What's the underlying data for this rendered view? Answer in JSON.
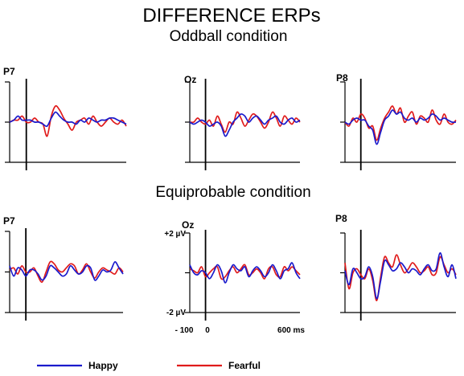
{
  "title": "DIFFERENCE ERPs",
  "sections": {
    "oddball": "Oddball condition",
    "equiprobable": "Equiprobable condition"
  },
  "axis_labels": {
    "y_top": "+2 µV",
    "y_bottom": "-2 µV",
    "x_start": "- 100",
    "x_zero": "0",
    "x_end": "600 ms"
  },
  "legend": [
    {
      "name": "Happy",
      "color": "#1a1acc"
    },
    {
      "name": "Fearful",
      "color": "#e01b1b"
    }
  ],
  "colors": {
    "happy": "#1a1acc",
    "fearful": "#e01b1b",
    "axis": "#000000"
  },
  "chart_data": [
    {
      "type": "line",
      "condition": "Oddball condition",
      "electrode": "P7",
      "xlim": [
        -100,
        600
      ],
      "ylim": [
        -2,
        2
      ],
      "x": [
        -100,
        -75,
        -50,
        -25,
        0,
        25,
        50,
        75,
        100,
        125,
        150,
        175,
        200,
        225,
        250,
        275,
        300,
        325,
        350,
        375,
        400,
        425,
        450,
        475,
        500,
        525,
        550,
        575,
        600
      ],
      "series": [
        {
          "name": "Happy",
          "values": [
            0,
            0.1,
            0.3,
            0.1,
            0.1,
            0.1,
            0,
            0,
            -0.1,
            -0.2,
            0.2,
            0.5,
            0.3,
            0.1,
            0,
            0,
            -0.1,
            0.1,
            0,
            0.2,
            0.1,
            0,
            0.1,
            0.1,
            0.2,
            0.2,
            0.1,
            0,
            -0.1
          ]
        },
        {
          "name": "Fearful",
          "values": [
            0,
            0.1,
            0.1,
            0.3,
            0,
            0,
            0.2,
            0,
            -0.1,
            -0.7,
            0.3,
            0.8,
            0.6,
            0.2,
            -0.1,
            -0.4,
            0,
            0.1,
            0.2,
            -0.1,
            0.3,
            0,
            -0.2,
            0,
            0.2,
            0,
            -0.1,
            0.1,
            -0.2
          ]
        }
      ]
    },
    {
      "type": "line",
      "condition": "Oddball condition",
      "electrode": "Oz",
      "xlim": [
        -100,
        600
      ],
      "ylim": [
        -2,
        2
      ],
      "x": [
        -100,
        -75,
        -50,
        -25,
        0,
        25,
        50,
        75,
        100,
        125,
        150,
        175,
        200,
        225,
        250,
        275,
        300,
        325,
        350,
        375,
        400,
        425,
        450,
        475,
        500,
        525,
        550,
        575,
        600
      ],
      "series": [
        {
          "name": "Happy",
          "values": [
            0,
            -0.1,
            0,
            0.1,
            0,
            -0.2,
            -0.1,
            0,
            -0.2,
            -0.7,
            -0.4,
            0,
            0.2,
            0.4,
            0.3,
            0,
            0.2,
            0.3,
            0.1,
            -0.1,
            0.1,
            0.2,
            0.3,
            0,
            -0.1,
            0.1,
            0.2,
            0,
            0.1
          ]
        },
        {
          "name": "Fearful",
          "values": [
            0,
            0,
            0.2,
            0,
            -0.1,
            0.1,
            -0.2,
            0.3,
            -0.1,
            -0.5,
            0,
            -0.1,
            0.5,
            0.2,
            -0.2,
            0.1,
            0.4,
            0.3,
            0,
            -0.3,
            0,
            0.5,
            0.2,
            -0.2,
            0.3,
            0.1,
            -0.1,
            0.2,
            0
          ]
        }
      ]
    },
    {
      "type": "line",
      "condition": "Oddball condition",
      "electrode": "P8",
      "xlim": [
        -100,
        600
      ],
      "ylim": [
        -2,
        2
      ],
      "x": [
        -100,
        -75,
        -50,
        -25,
        0,
        25,
        50,
        75,
        100,
        125,
        150,
        175,
        200,
        225,
        250,
        275,
        300,
        325,
        350,
        375,
        400,
        425,
        450,
        475,
        500,
        525,
        550,
        575,
        600
      ],
      "series": [
        {
          "name": "Happy",
          "values": [
            0,
            -0.1,
            0.1,
            0.2,
            0.1,
            0.1,
            -0.2,
            -0.4,
            -1.1,
            -0.5,
            0.1,
            0.3,
            0.6,
            0.4,
            0.5,
            0.2,
            0.1,
            0.2,
            0,
            0.2,
            0.1,
            0.2,
            0.4,
            0.3,
            0.1,
            0.2,
            0.1,
            0,
            0
          ]
        },
        {
          "name": "Fearful",
          "values": [
            0,
            -0.2,
            0.2,
            0,
            0.4,
            0.2,
            -0.3,
            -0.2,
            -0.9,
            -0.3,
            0.2,
            0.5,
            0.8,
            0.4,
            0.7,
            0,
            0.3,
            0.5,
            -0.1,
            0.3,
            0.2,
            0,
            0.6,
            0.1,
            -0.1,
            0.4,
            0,
            -0.1,
            0.1
          ]
        }
      ]
    },
    {
      "type": "line",
      "condition": "Equiprobable condition",
      "electrode": "P7",
      "xlim": [
        -100,
        600
      ],
      "ylim": [
        -2,
        2
      ],
      "x": [
        -100,
        -75,
        -50,
        -25,
        0,
        25,
        50,
        75,
        100,
        125,
        150,
        175,
        200,
        225,
        250,
        275,
        300,
        325,
        350,
        375,
        400,
        425,
        450,
        475,
        500,
        525,
        550,
        575,
        600
      ],
      "series": [
        {
          "name": "Happy",
          "values": [
            0.3,
            -0.2,
            0.2,
            0.1,
            -0.2,
            0.1,
            0.1,
            -0.1,
            -0.4,
            -0.2,
            0.3,
            0.2,
            0,
            -0.2,
            -0.1,
            0.3,
            0.1,
            -0.1,
            0,
            0.3,
            0.2,
            -0.4,
            -0.2,
            0.1,
            0,
            0.1,
            0.5,
            0.2,
            -0.1
          ]
        },
        {
          "name": "Fearful",
          "values": [
            0.1,
            0.2,
            -0.1,
            0.3,
            0,
            0,
            0.2,
            -0.2,
            -0.5,
            0,
            0.5,
            0.4,
            0.1,
            0,
            0.2,
            0.4,
            0.3,
            -0.1,
            0.1,
            0.4,
            0,
            -0.3,
            0,
            0.2,
            0.1,
            0,
            -0.1,
            0.2,
            0
          ]
        }
      ]
    },
    {
      "type": "line",
      "condition": "Equiprobable condition",
      "electrode": "Oz",
      "xlim": [
        -100,
        600
      ],
      "ylim": [
        -2,
        2
      ],
      "x": [
        -100,
        -75,
        -50,
        -25,
        0,
        25,
        50,
        75,
        100,
        125,
        150,
        175,
        200,
        225,
        250,
        275,
        300,
        325,
        350,
        375,
        400,
        425,
        450,
        475,
        500,
        525,
        550,
        575,
        600
      ],
      "series": [
        {
          "name": "Happy",
          "values": [
            0.4,
            0,
            -0.1,
            0.1,
            0,
            -0.3,
            0,
            0.4,
            0.1,
            -0.5,
            0,
            0.4,
            0.2,
            0.1,
            0.3,
            -0.2,
            0.1,
            0.3,
            0.1,
            -0.2,
            0,
            0.4,
            0.1,
            -0.3,
            0.1,
            0.2,
            0.5,
            0,
            -0.3
          ]
        },
        {
          "name": "Fearful",
          "values": [
            0.2,
            0.1,
            0,
            0.3,
            -0.2,
            0,
            0.2,
            0.3,
            -0.3,
            -0.2,
            0.1,
            0.3,
            0,
            0.2,
            0.4,
            -0.1,
            0,
            0.2,
            0,
            -0.3,
            0.2,
            0.3,
            -0.1,
            -0.2,
            0.3,
            0.1,
            0.3,
            0.1,
            -0.1
          ]
        }
      ]
    },
    {
      "type": "line",
      "condition": "Equiprobable condition",
      "electrode": "P8",
      "xlim": [
        -100,
        600
      ],
      "ylim": [
        -2,
        2
      ],
      "x": [
        -100,
        -75,
        -50,
        -25,
        0,
        25,
        50,
        75,
        100,
        125,
        150,
        175,
        200,
        225,
        250,
        275,
        300,
        325,
        350,
        375,
        400,
        425,
        450,
        475,
        500,
        525,
        550,
        575,
        600
      ],
      "series": [
        {
          "name": "Happy",
          "values": [
            0.1,
            -0.6,
            0.2,
            0,
            -0.3,
            -0.2,
            0.3,
            -0.2,
            -1.3,
            -0.4,
            0.6,
            0.4,
            0.1,
            0.2,
            0.5,
            0.3,
            0,
            0.2,
            0.1,
            -0.1,
            0.2,
            0.4,
            0.1,
            0.2,
            1,
            0.3,
            -0.2,
            0.4,
            -0.3
          ]
        },
        {
          "name": "Fearful",
          "values": [
            0.5,
            -0.8,
            0,
            0.2,
            -0.1,
            -0.3,
            0.2,
            -0.4,
            -1.4,
            -0.2,
            0.8,
            0.5,
            0.3,
            0.9,
            0.4,
            0,
            0.2,
            0.5,
            0.3,
            0,
            0.1,
            0.3,
            -0.1,
            0,
            0.8,
            0.4,
            0,
            0.2,
            -0.1
          ]
        }
      ]
    }
  ]
}
